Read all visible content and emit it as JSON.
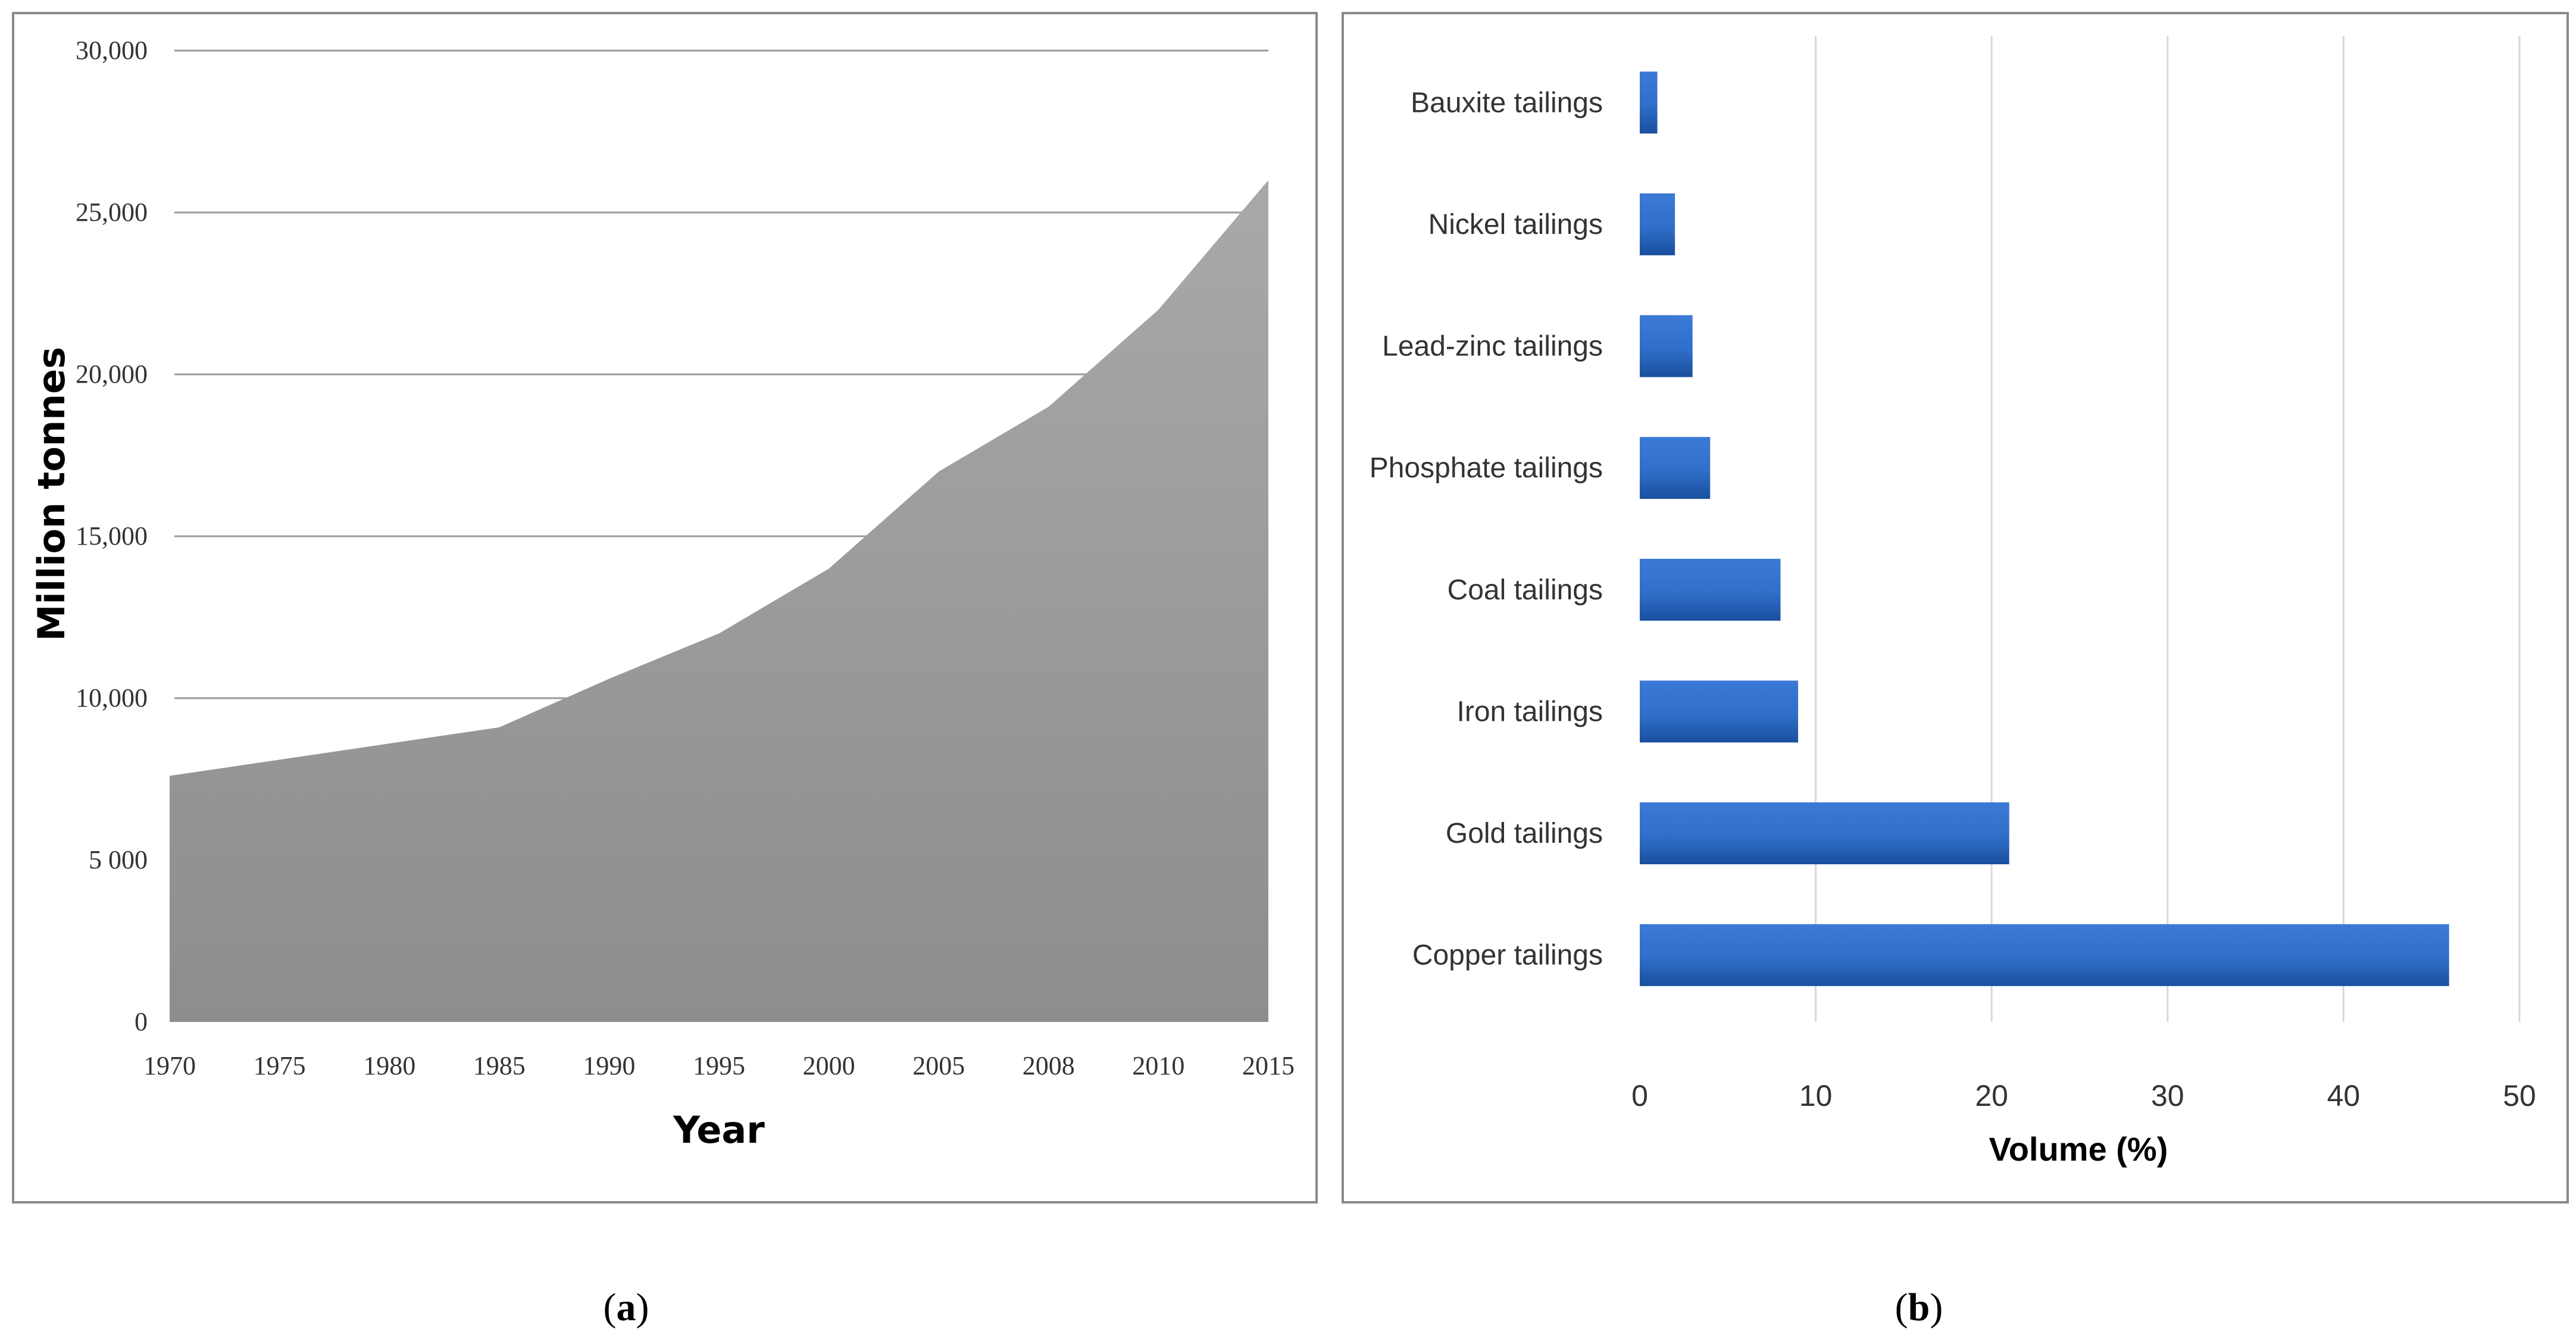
{
  "chart_data": [
    {
      "type": "area",
      "panel": "a",
      "x": [
        "1970",
        "1975",
        "1980",
        "1985",
        "1990",
        "1995",
        "2000",
        "2005",
        "2008",
        "2010",
        "2015"
      ],
      "values": [
        7600,
        8100,
        8600,
        9100,
        10600,
        12000,
        14000,
        17000,
        19000,
        22000,
        26000
      ],
      "title": "",
      "xlabel": "Year",
      "ylabel": "Million tonnes",
      "ylim": [
        0,
        30000
      ],
      "yticks": [
        0,
        5000,
        10000,
        15000,
        20000,
        25000,
        30000
      ],
      "ytick_labels": [
        "0",
        "5 000",
        "10,000",
        "15,000",
        "20,000",
        "25,000",
        "30,000"
      ],
      "fill_color_top": "#a9a9a9",
      "fill_color_bottom": "#8d8d8d",
      "grid": true
    },
    {
      "type": "bar",
      "orientation": "horizontal",
      "panel": "b",
      "categories": [
        "Copper tailings",
        "Gold tailings",
        "Iron tailings",
        "Coal tailings",
        "Phosphate tailings",
        "Lead-zinc tailings",
        "Nickel tailings",
        "Bauxite tailings"
      ],
      "values": [
        46,
        21,
        9,
        8,
        4,
        3,
        2,
        1
      ],
      "title": "",
      "xlabel": "Volume (%)",
      "ylabel": "",
      "xlim": [
        0,
        50
      ],
      "xticks": [
        0,
        10,
        20,
        30,
        40,
        50
      ],
      "xtick_labels": [
        "0",
        "10",
        "20",
        "30",
        "40",
        "50"
      ],
      "bar_color": "#2f6fc9",
      "bar_color_dark": "#1a4f9e",
      "grid": true
    }
  ],
  "captions": {
    "a_open": "(",
    "a_letter": "a",
    "a_close": ")",
    "b_open": "(",
    "b_letter": "b",
    "b_close": ")"
  }
}
